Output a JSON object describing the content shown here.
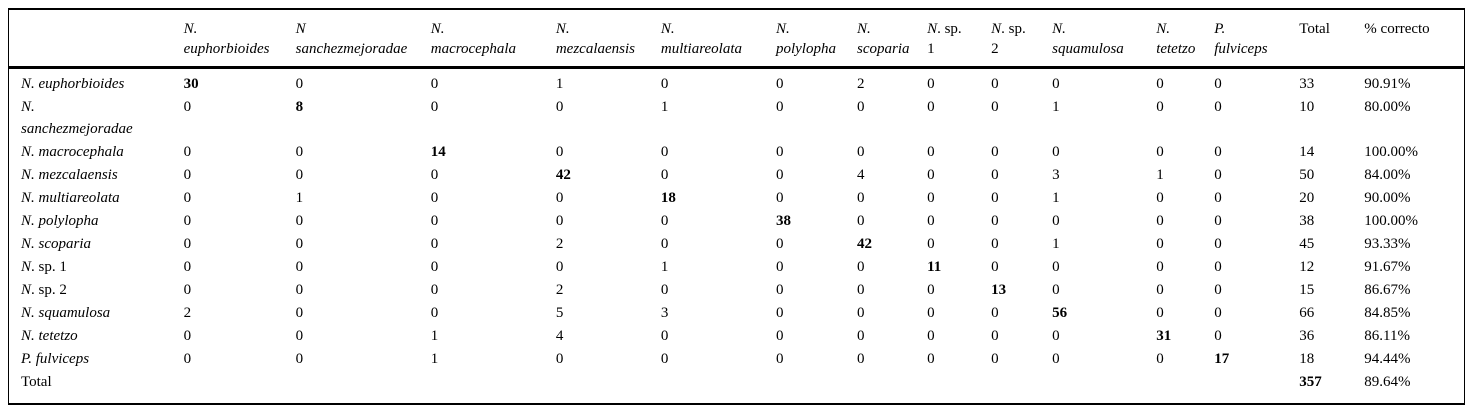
{
  "table": {
    "columns": [
      {
        "lines": [
          [
            {
              "t": "N.",
              "i": true
            }
          ],
          [
            {
              "t": "euphorbioides",
              "i": true
            }
          ]
        ]
      },
      {
        "lines": [
          [
            {
              "t": "N",
              "i": true
            }
          ],
          [
            {
              "t": "sanchezmejoradae",
              "i": true
            }
          ]
        ]
      },
      {
        "lines": [
          [
            {
              "t": "N.",
              "i": true
            }
          ],
          [
            {
              "t": "macrocephala",
              "i": true
            }
          ]
        ]
      },
      {
        "lines": [
          [
            {
              "t": "N.",
              "i": true
            }
          ],
          [
            {
              "t": "mezcalaensis",
              "i": true
            }
          ]
        ]
      },
      {
        "lines": [
          [
            {
              "t": "N.",
              "i": true
            }
          ],
          [
            {
              "t": "multiareolata",
              "i": true
            }
          ]
        ]
      },
      {
        "lines": [
          [
            {
              "t": "N.",
              "i": true
            }
          ],
          [
            {
              "t": "polylopha",
              "i": true
            }
          ]
        ]
      },
      {
        "lines": [
          [
            {
              "t": "N.",
              "i": true
            }
          ],
          [
            {
              "t": "scoparia",
              "i": true
            }
          ]
        ]
      },
      {
        "lines": [
          [
            {
              "t": "N",
              "i": true
            },
            {
              "t": ". sp.",
              "i": false
            }
          ],
          [
            {
              "t": "1",
              "i": false
            }
          ]
        ]
      },
      {
        "lines": [
          [
            {
              "t": "N",
              "i": true
            },
            {
              "t": ". sp.",
              "i": false
            }
          ],
          [
            {
              "t": "2",
              "i": false
            }
          ]
        ]
      },
      {
        "lines": [
          [
            {
              "t": "N.",
              "i": true
            }
          ],
          [
            {
              "t": "squamulosa",
              "i": true
            }
          ]
        ]
      },
      {
        "lines": [
          [
            {
              "t": "N.",
              "i": true
            }
          ],
          [
            {
              "t": "tetetzo",
              "i": true
            }
          ]
        ]
      },
      {
        "lines": [
          [
            {
              "t": "P.",
              "i": true
            }
          ],
          [
            {
              "t": "fulviceps",
              "i": true
            }
          ]
        ]
      },
      {
        "lines": [
          [
            {
              "t": "Total",
              "i": false
            }
          ]
        ]
      },
      {
        "lines": [
          [
            {
              "t": "% correcto",
              "i": false
            }
          ]
        ]
      }
    ],
    "rows": [
      {
        "label_lines": [
          [
            {
              "t": "N. euphorbioides",
              "i": true
            }
          ]
        ],
        "values": [
          "30",
          "0",
          "0",
          "1",
          "0",
          "0",
          "2",
          "0",
          "0",
          "0",
          "0",
          "0"
        ],
        "bold_col": 0,
        "total": "33",
        "pct": "90.91%",
        "total_bold": false
      },
      {
        "label_lines": [
          [
            {
              "t": "N.",
              "i": true
            }
          ],
          [
            {
              "t": "sanchezmejoradae",
              "i": true
            }
          ]
        ],
        "values": [
          "0",
          "8",
          "0",
          "0",
          "1",
          "0",
          "0",
          "0",
          "0",
          "1",
          "0",
          "0"
        ],
        "bold_col": 1,
        "total": "10",
        "pct": "80.00%",
        "total_bold": false
      },
      {
        "label_lines": [
          [
            {
              "t": "N. macrocephala",
              "i": true
            }
          ]
        ],
        "values": [
          "0",
          "0",
          "14",
          "0",
          "0",
          "0",
          "0",
          "0",
          "0",
          "0",
          "0",
          "0"
        ],
        "bold_col": 2,
        "total": "14",
        "pct": "100.00%",
        "total_bold": false
      },
      {
        "label_lines": [
          [
            {
              "t": "N. mezcalaensis",
              "i": true
            }
          ]
        ],
        "values": [
          "0",
          "0",
          "0",
          "42",
          "0",
          "0",
          "4",
          "0",
          "0",
          "3",
          "1",
          "0"
        ],
        "bold_col": 3,
        "total": "50",
        "pct": "84.00%",
        "total_bold": false
      },
      {
        "label_lines": [
          [
            {
              "t": "N. multiareolata",
              "i": true
            }
          ]
        ],
        "values": [
          "0",
          "1",
          "0",
          "0",
          "18",
          "0",
          "0",
          "0",
          "0",
          "1",
          "0",
          "0"
        ],
        "bold_col": 4,
        "total": "20",
        "pct": "90.00%",
        "total_bold": false
      },
      {
        "label_lines": [
          [
            {
              "t": "N. polylopha",
              "i": true
            }
          ]
        ],
        "values": [
          "0",
          "0",
          "0",
          "0",
          "0",
          "38",
          "0",
          "0",
          "0",
          "0",
          "0",
          "0"
        ],
        "bold_col": 5,
        "total": "38",
        "pct": "100.00%",
        "total_bold": false
      },
      {
        "label_lines": [
          [
            {
              "t": "N. scoparia",
              "i": true
            }
          ]
        ],
        "values": [
          "0",
          "0",
          "0",
          "2",
          "0",
          "0",
          "42",
          "0",
          "0",
          "1",
          "0",
          "0"
        ],
        "bold_col": 6,
        "total": "45",
        "pct": "93.33%",
        "total_bold": false
      },
      {
        "label_lines": [
          [
            {
              "t": "N",
              "i": true
            },
            {
              "t": ". sp. 1",
              "i": false
            }
          ]
        ],
        "values": [
          "0",
          "0",
          "0",
          "0",
          "1",
          "0",
          "0",
          "11",
          "0",
          "0",
          "0",
          "0"
        ],
        "bold_col": 7,
        "total": "12",
        "pct": "91.67%",
        "total_bold": false
      },
      {
        "label_lines": [
          [
            {
              "t": "N",
              "i": true
            },
            {
              "t": ". sp. 2",
              "i": false
            }
          ]
        ],
        "values": [
          "0",
          "0",
          "0",
          "2",
          "0",
          "0",
          "0",
          "0",
          "13",
          "0",
          "0",
          "0"
        ],
        "bold_col": 8,
        "total": "15",
        "pct": "86.67%",
        "total_bold": false
      },
      {
        "label_lines": [
          [
            {
              "t": "N. squamulosa",
              "i": true
            }
          ]
        ],
        "values": [
          "2",
          "0",
          "0",
          "5",
          "3",
          "0",
          "0",
          "0",
          "0",
          "56",
          "0",
          "0"
        ],
        "bold_col": 9,
        "total": "66",
        "pct": "84.85%",
        "total_bold": false
      },
      {
        "label_lines": [
          [
            {
              "t": "N. tetetzo",
              "i": true
            }
          ]
        ],
        "values": [
          "0",
          "0",
          "1",
          "4",
          "0",
          "0",
          "0",
          "0",
          "0",
          "0",
          "31",
          "0"
        ],
        "bold_col": 10,
        "total": "36",
        "pct": "86.11%",
        "total_bold": false
      },
      {
        "label_lines": [
          [
            {
              "t": "P. fulviceps",
              "i": true
            }
          ]
        ],
        "values": [
          "0",
          "0",
          "1",
          "0",
          "0",
          "0",
          "0",
          "0",
          "0",
          "0",
          "0",
          "17"
        ],
        "bold_col": 11,
        "total": "18",
        "pct": "94.44%",
        "total_bold": false
      },
      {
        "label_lines": [
          [
            {
              "t": "Total",
              "i": false
            }
          ]
        ],
        "values": [
          "",
          "",
          "",
          "",
          "",
          "",
          "",
          "",
          "",
          "",
          "",
          ""
        ],
        "bold_col": -1,
        "total": "357",
        "pct": "89.64%",
        "total_bold": true
      }
    ]
  }
}
